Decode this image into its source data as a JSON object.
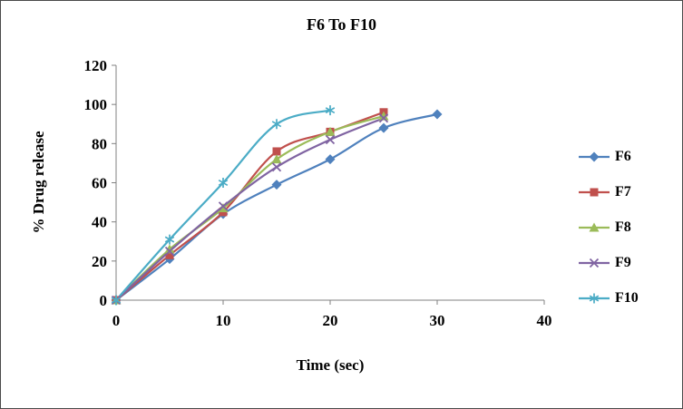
{
  "frame": {
    "background": "#ffffff",
    "border_color": "#4a4a4a",
    "axis_color": "#808080",
    "text_color": "#000000"
  },
  "chart_data": {
    "type": "line",
    "title": "F6 To F10",
    "xlabel": "Time (sec)",
    "ylabel": "% Drug release",
    "xlim": [
      0,
      40
    ],
    "ylim": [
      0,
      120
    ],
    "xticks": [
      0,
      10,
      20,
      30,
      40
    ],
    "yticks": [
      0,
      20,
      40,
      60,
      80,
      100,
      120
    ],
    "grid": false,
    "legend_position": "right",
    "series": [
      {
        "name": "F6",
        "color": "#4F81BD",
        "marker": "diamond",
        "x": [
          0,
          5,
          10,
          15,
          20,
          25,
          30
        ],
        "y": [
          0,
          21,
          44,
          59,
          72,
          88,
          95
        ]
      },
      {
        "name": "F7",
        "color": "#C0504D",
        "marker": "square",
        "x": [
          0,
          5,
          10,
          15,
          20,
          25
        ],
        "y": [
          0,
          23,
          45,
          76,
          86,
          96
        ]
      },
      {
        "name": "F8",
        "color": "#9BBB59",
        "marker": "triangle",
        "x": [
          0,
          5,
          10,
          15,
          20,
          25
        ],
        "y": [
          0,
          26,
          47,
          72,
          86,
          94
        ]
      },
      {
        "name": "F9",
        "color": "#8064A2",
        "marker": "x",
        "x": [
          0,
          5,
          10,
          15,
          20,
          25
        ],
        "y": [
          0,
          25,
          48,
          68,
          82,
          93
        ]
      },
      {
        "name": "F10",
        "color": "#4BACC6",
        "marker": "asterisk",
        "x": [
          0,
          5,
          10,
          15,
          20
        ],
        "y": [
          0,
          31,
          60,
          90,
          97
        ]
      }
    ]
  }
}
